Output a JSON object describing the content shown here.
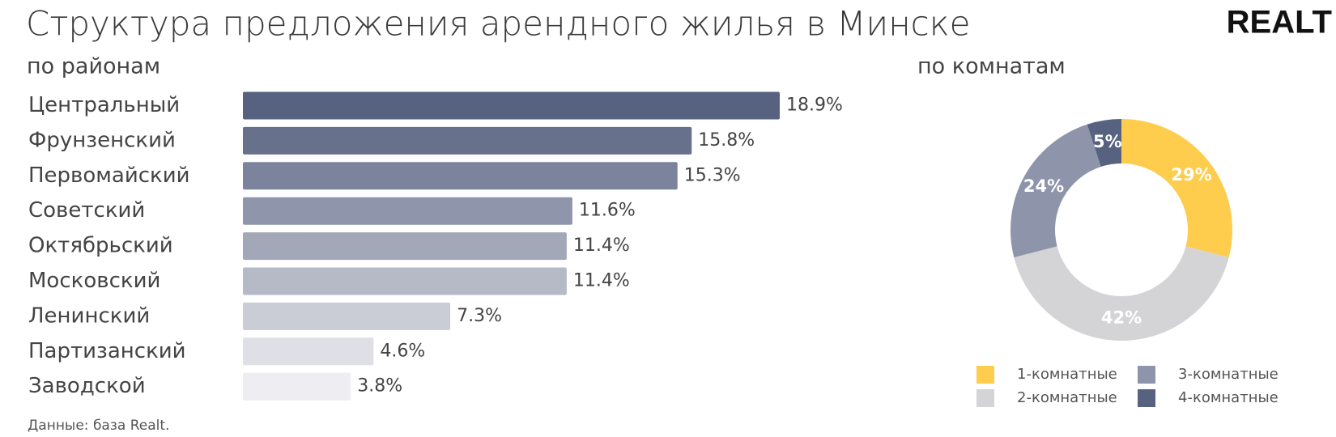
{
  "title": "Структура предложения арендного жилья в Минске",
  "logo": "REALT",
  "source": "Данные: база Realt.",
  "chart_data": [
    {
      "type": "bar",
      "title": "по районам",
      "categories": [
        "Центральный",
        "Фрунзенский",
        "Первомайский",
        "Советский",
        "Октябрьский",
        "Московский",
        "Ленинский",
        "Партизанский",
        "Заводской"
      ],
      "values": [
        18.9,
        15.8,
        15.3,
        11.6,
        11.4,
        11.4,
        7.3,
        4.6,
        3.8
      ],
      "value_labels": [
        "18.9%",
        "15.8%",
        "15.3%",
        "11.6%",
        "11.4%",
        "11.4%",
        "7.3%",
        "4.6%",
        "3.8%"
      ],
      "colors": [
        "#56627f",
        "#67718b",
        "#7b849c",
        "#8f96ab",
        "#a3a8b8",
        "#b6bac7",
        "#cbcdd6",
        "#dfe0e6",
        "#eeeef2"
      ]
    },
    {
      "type": "donut",
      "title": "по комнатам",
      "categories": [
        "1-комнатные",
        "2-комнатные",
        "3-комнатные",
        "4-комнатные"
      ],
      "values": [
        29,
        42,
        24,
        5
      ],
      "value_labels": [
        "29%",
        "42%",
        "24%",
        "5%"
      ],
      "colors": [
        "#ffcd4d",
        "#d4d4d6",
        "#8e94aa",
        "#56627f"
      ]
    }
  ]
}
